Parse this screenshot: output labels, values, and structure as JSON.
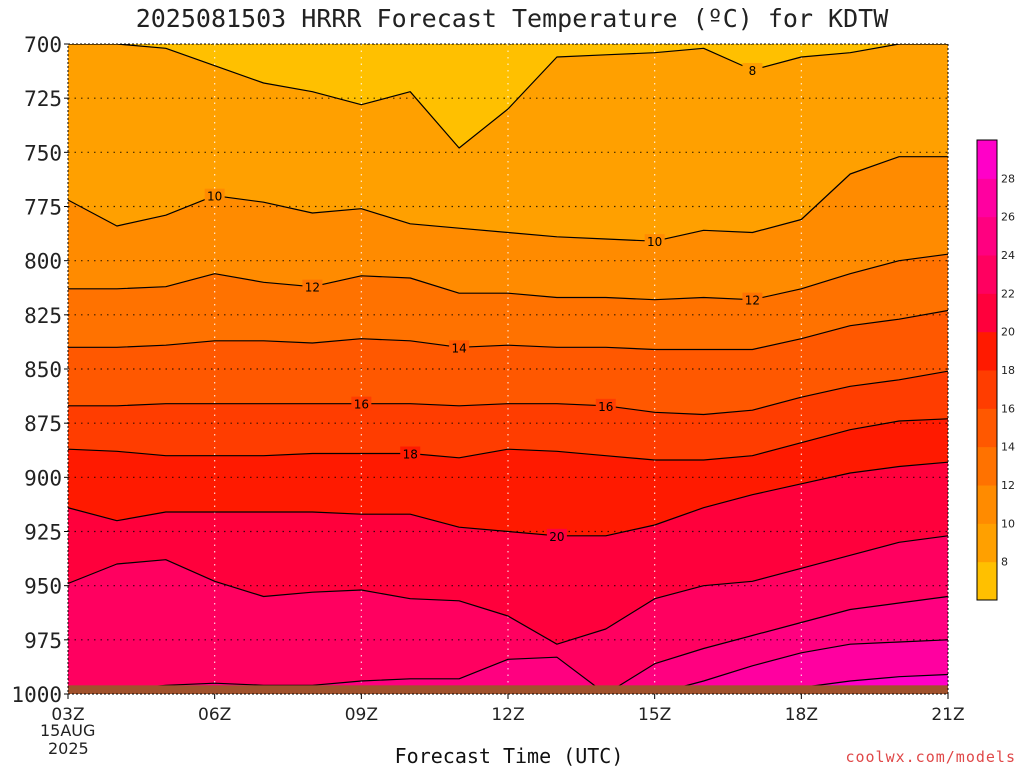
{
  "chart_data": {
    "type": "heatmap",
    "title": "2025081503 HRRR Forecast Temperature (ºC) for KDTW",
    "xlabel": "Forecast Time (UTC)",
    "ylabel": "",
    "watermark": "coolwx.com/models",
    "x_ticks": [
      "03Z",
      "06Z",
      "09Z",
      "12Z",
      "15Z",
      "18Z",
      "21Z"
    ],
    "x_sub_labels": [
      "15AUG",
      "2025"
    ],
    "x_range_hours": [
      3,
      21
    ],
    "y_ticks": [
      "700",
      "725",
      "750",
      "775",
      "800",
      "825",
      "850",
      "875",
      "900",
      "925",
      "950",
      "975",
      "1000"
    ],
    "y_range_hPa": [
      700,
      1000
    ],
    "y_inverted": true,
    "grid": "dotted",
    "colorbar": {
      "location": "right",
      "tick_labels": [
        "8",
        "10",
        "12",
        "14",
        "16",
        "18",
        "20",
        "22",
        "24",
        "26",
        "28"
      ],
      "levels": [
        6,
        8,
        10,
        12,
        14,
        16,
        18,
        20,
        22,
        24,
        26,
        28,
        30
      ],
      "colors": [
        "#ffc000",
        "#ffa000",
        "#ff8b00",
        "#ff7200",
        "#ff5800",
        "#ff3d00",
        "#ff1a00",
        "#ff003c",
        "#ff0060",
        "#ff0080",
        "#ff00a0",
        "#ff00c8"
      ]
    },
    "hours": [
      3,
      4,
      5,
      6,
      7,
      8,
      9,
      10,
      11,
      12,
      13,
      14,
      15,
      16,
      17,
      18,
      19,
      20,
      21
    ],
    "contours": [
      {
        "level": 8,
        "label": "8",
        "pressure": [
          700,
          700,
          702,
          710,
          718,
          722,
          728,
          722,
          748,
          730,
          706,
          705,
          704,
          702,
          712,
          706,
          704,
          700,
          700
        ]
      },
      {
        "level": 10,
        "label": "10",
        "pressure": [
          772,
          784,
          779,
          770,
          773,
          778,
          776,
          783,
          785,
          787,
          789,
          790,
          791,
          786,
          787,
          781,
          760,
          752,
          752
        ]
      },
      {
        "level": 12,
        "label": "12",
        "pressure": [
          813,
          813,
          812,
          806,
          810,
          812,
          807,
          808,
          815,
          815,
          817,
          817,
          818,
          817,
          818,
          813,
          806,
          800,
          797
        ]
      },
      {
        "level": 14,
        "label": "14",
        "pressure": [
          840,
          840,
          839,
          837,
          837,
          838,
          836,
          837,
          840,
          839,
          840,
          840,
          841,
          841,
          841,
          836,
          830,
          827,
          823
        ]
      },
      {
        "level": 16,
        "label": "16",
        "pressure": [
          867,
          867,
          866,
          866,
          866,
          866,
          866,
          866,
          867,
          866,
          866,
          867,
          870,
          871,
          869,
          863,
          858,
          855,
          851
        ]
      },
      {
        "level": 18,
        "label": "18",
        "pressure": [
          887,
          888,
          890,
          890,
          890,
          889,
          889,
          889,
          891,
          887,
          888,
          890,
          892,
          892,
          890,
          884,
          878,
          874,
          873
        ]
      },
      {
        "level": 20,
        "label": "20",
        "pressure": [
          914,
          920,
          916,
          916,
          916,
          916,
          917,
          917,
          923,
          925,
          927,
          927,
          922,
          914,
          908,
          903,
          898,
          895,
          893
        ]
      },
      {
        "level": 22,
        "label": "",
        "pressure": [
          949,
          940,
          938,
          948,
          955,
          953,
          952,
          956,
          957,
          964,
          977,
          970,
          956,
          950,
          948,
          942,
          936,
          930,
          927
        ]
      },
      {
        "level": 24,
        "label": "",
        "pressure": [
          1000,
          998,
          996,
          995,
          996,
          996,
          994,
          993,
          993,
          984,
          983,
          1000,
          986,
          979,
          973,
          967,
          961,
          958,
          955
        ]
      },
      {
        "level": 26,
        "label": "",
        "pressure": [
          1000,
          1000,
          1000,
          1000,
          1000,
          1000,
          1000,
          1000,
          1000,
          1000,
          1000,
          1000,
          1000,
          994,
          987,
          981,
          977,
          976,
          975
        ]
      },
      {
        "level": 28,
        "label": "",
        "pressure": [
          1000,
          1000,
          1000,
          1000,
          1000,
          1000,
          1000,
          1000,
          1000,
          1000,
          1000,
          1000,
          1000,
          1000,
          1000,
          997,
          994,
          992,
          991
        ]
      }
    ],
    "ground": {
      "pressure": 996,
      "color": "#a0522d"
    }
  }
}
